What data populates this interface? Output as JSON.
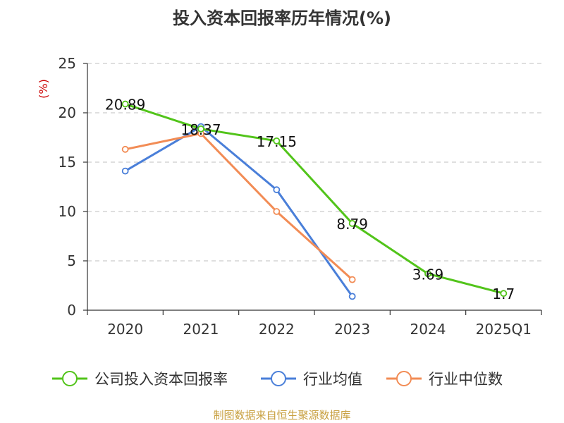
{
  "chart_data": {
    "type": "line",
    "title": "投入资本回报率历年情况(%)",
    "ylabel": "(%)",
    "xlabel": "",
    "categories": [
      "2020",
      "2021",
      "2022",
      "2023",
      "2024",
      "2025Q1"
    ],
    "ylim": [
      0,
      25
    ],
    "yticks": [
      0,
      5,
      10,
      15,
      20,
      25
    ],
    "grid": true,
    "legend_position": "bottom",
    "series": [
      {
        "name": "公司投入资本回报率",
        "color": "#52c41a",
        "values": [
          20.89,
          18.37,
          17.15,
          8.79,
          3.69,
          1.7
        ],
        "labels": [
          "20.89",
          "18.37",
          "17.15",
          "8.79",
          "3.69",
          "1.7"
        ]
      },
      {
        "name": "行业均值",
        "color": "#4a7fd9",
        "values": [
          14.1,
          18.6,
          12.2,
          1.4,
          null,
          null
        ]
      },
      {
        "name": "行业中位数",
        "color": "#f28c55",
        "values": [
          16.3,
          17.9,
          10.0,
          3.1,
          null,
          null
        ]
      }
    ]
  },
  "source": "制图数据来自恒生聚源数据库",
  "colors": {
    "axis": "#333333",
    "grid": "#cccccc",
    "unit": "#cc0000",
    "source": "#c8a040"
  }
}
